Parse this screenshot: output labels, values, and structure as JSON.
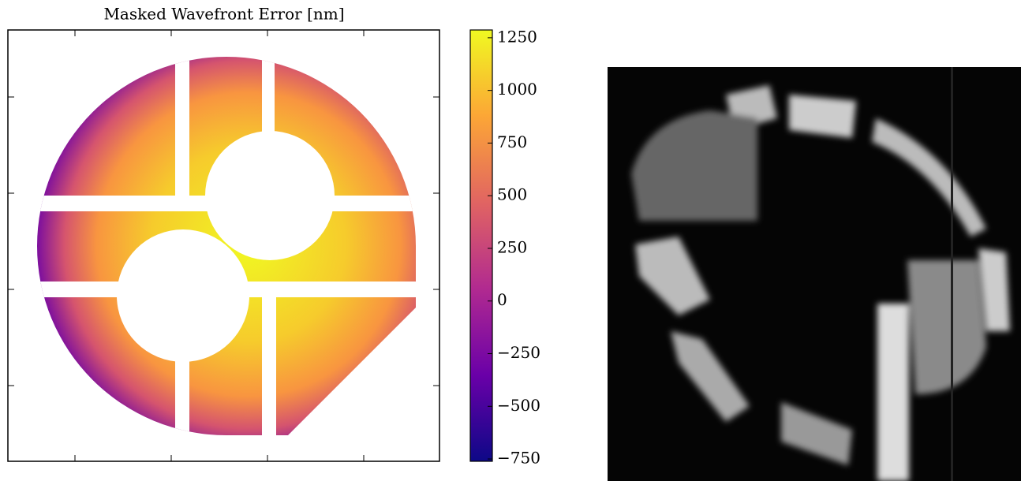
{
  "chart_data": {
    "type": "heatmap",
    "title": "Masked Wavefront Error [nm]",
    "clim": [
      -761,
      1287
    ],
    "cticks": [
      {
        "value": -750,
        "label": "−750"
      },
      {
        "value": -500,
        "label": "−500"
      },
      {
        "value": -250,
        "label": "−250"
      },
      0,
      250,
      500,
      750,
      1000,
      1250
    ],
    "colormap": [
      "#0d0887",
      "#6a00a8",
      "#b12a90",
      "#e16462",
      "#fca636",
      "#f0f921"
    ]
  }
}
